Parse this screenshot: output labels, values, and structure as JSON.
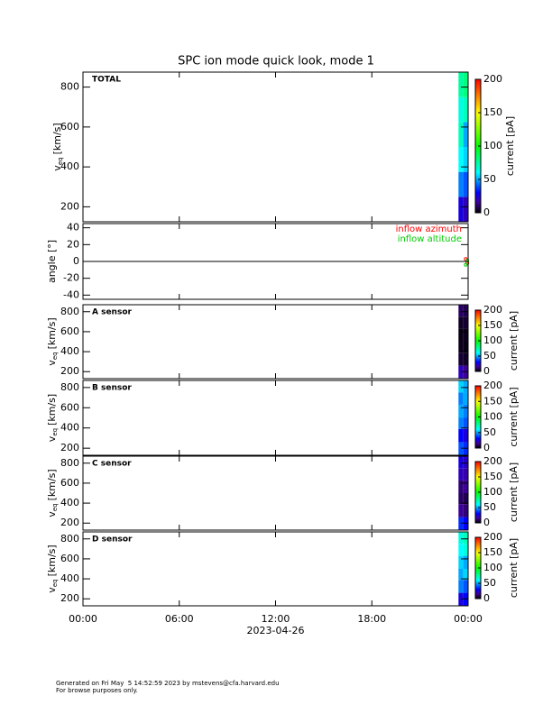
{
  "chart_data": [
    {
      "type": "heatmap",
      "title": "SPC ion mode quick look, mode 1",
      "label": "TOTAL",
      "ylabel": {
        "main": "v",
        "sub": "eq",
        "unit": "[km/s]"
      },
      "xlim": [
        0,
        24
      ],
      "ylim": [
        125,
        875
      ],
      "yticks": [
        200,
        400,
        600,
        800
      ],
      "time_edges": [
        23.4,
        23.7,
        24
      ],
      "v_edges": [
        125,
        250,
        375,
        500,
        625,
        750,
        875
      ],
      "z": [
        [
          25,
          45,
          60,
          70,
          65,
          75
        ],
        [
          20,
          40,
          55,
          50,
          70,
          80
        ]
      ],
      "colorbar": {
        "label": "current [pA]",
        "lim": [
          0,
          200
        ],
        "ticks": [
          0,
          50,
          100,
          150,
          200
        ]
      }
    },
    {
      "type": "scatter",
      "ylabel": "angle [°]",
      "xlim": [
        0,
        24
      ],
      "ylim": [
        -45,
        45
      ],
      "yticks": [
        -40,
        -20,
        0,
        20,
        40
      ],
      "zero_line": true,
      "series": [
        {
          "name": "inflow azimuth",
          "color": "#ff0000",
          "x": [
            23.85,
            23.95
          ],
          "values": [
            3,
            -2
          ]
        },
        {
          "name": "inflow altitude",
          "color": "#00cc00",
          "x": [
            23.85,
            23.95
          ],
          "values": [
            -4,
            1
          ]
        }
      ]
    },
    {
      "type": "heatmap",
      "label": "A sensor",
      "ylabel": {
        "main": "v",
        "sub": "eq",
        "unit": "[km/s]"
      },
      "xlim": [
        0,
        24
      ],
      "ylim": [
        130,
        870
      ],
      "yticks": [
        200,
        400,
        600,
        800
      ],
      "time_edges": [
        23.4,
        23.7,
        24
      ],
      "v_edges": [
        130,
        260,
        390,
        500,
        630,
        750,
        870
      ],
      "z": [
        [
          20,
          5,
          3,
          2,
          4,
          10
        ],
        [
          15,
          4,
          2,
          3,
          5,
          8
        ]
      ],
      "colorbar": {
        "label": "current [pA]",
        "lim": [
          0,
          200
        ],
        "ticks": [
          0,
          50,
          100,
          150,
          200
        ]
      }
    },
    {
      "type": "heatmap",
      "label": "B sensor",
      "ylabel": {
        "main": "v",
        "sub": "eq",
        "unit": "[km/s]"
      },
      "xlim": [
        0,
        24
      ],
      "ylim": [
        130,
        870
      ],
      "yticks": [
        200,
        400,
        600,
        800
      ],
      "time_edges": [
        23.4,
        23.7,
        24
      ],
      "v_edges": [
        130,
        260,
        390,
        500,
        630,
        750,
        870
      ],
      "z": [
        [
          40,
          30,
          45,
          50,
          45,
          55
        ],
        [
          35,
          25,
          40,
          45,
          50,
          50
        ]
      ],
      "colorbar": {
        "label": "current [pA]",
        "lim": [
          0,
          200
        ],
        "ticks": [
          0,
          50,
          100,
          150,
          200
        ]
      }
    },
    {
      "type": "heatmap",
      "label": "C sensor",
      "ylabel": {
        "main": "v",
        "sub": "eq",
        "unit": "[km/s]"
      },
      "xlim": [
        0,
        24
      ],
      "ylim": [
        130,
        870
      ],
      "yticks": [
        200,
        400,
        600,
        800
      ],
      "time_edges": [
        23.4,
        23.7,
        24
      ],
      "v_edges": [
        130,
        260,
        390,
        500,
        630,
        750,
        870
      ],
      "z": [
        [
          35,
          15,
          10,
          12,
          20,
          25
        ],
        [
          30,
          12,
          8,
          15,
          18,
          22
        ]
      ],
      "colorbar": {
        "label": "current [pA]",
        "lim": [
          0,
          200
        ],
        "ticks": [
          0,
          50,
          100,
          150,
          200
        ]
      }
    },
    {
      "type": "heatmap",
      "label": "D sensor",
      "ylabel": {
        "main": "v",
        "sub": "eq",
        "unit": "[km/s]"
      },
      "xlim": [
        0,
        24
      ],
      "ylim": [
        130,
        870
      ],
      "yticks": [
        200,
        400,
        600,
        800
      ],
      "time_edges": [
        23.4,
        23.7,
        24
      ],
      "v_edges": [
        130,
        260,
        390,
        500,
        630,
        750,
        870
      ],
      "z": [
        [
          25,
          45,
          50,
          55,
          60,
          65
        ],
        [
          30,
          40,
          55,
          50,
          65,
          70
        ]
      ],
      "colorbar": {
        "label": "current [pA]",
        "lim": [
          0,
          200
        ],
        "ticks": [
          0,
          50,
          100,
          150,
          200
        ]
      },
      "xticks": [
        {
          "value": 0,
          "label": "00:00"
        },
        {
          "value": 6,
          "label": "06:00"
        },
        {
          "value": 12,
          "label": "12:00"
        },
        {
          "value": 18,
          "label": "18:00"
        },
        {
          "value": 24,
          "label": "00:00"
        }
      ],
      "xlabel": "2023-04-26"
    }
  ],
  "footer": [
    "Generated on Fri May  5 14:52:59 2023 by mstevens@cfa.harvard.edu",
    "For browse purposes only."
  ]
}
